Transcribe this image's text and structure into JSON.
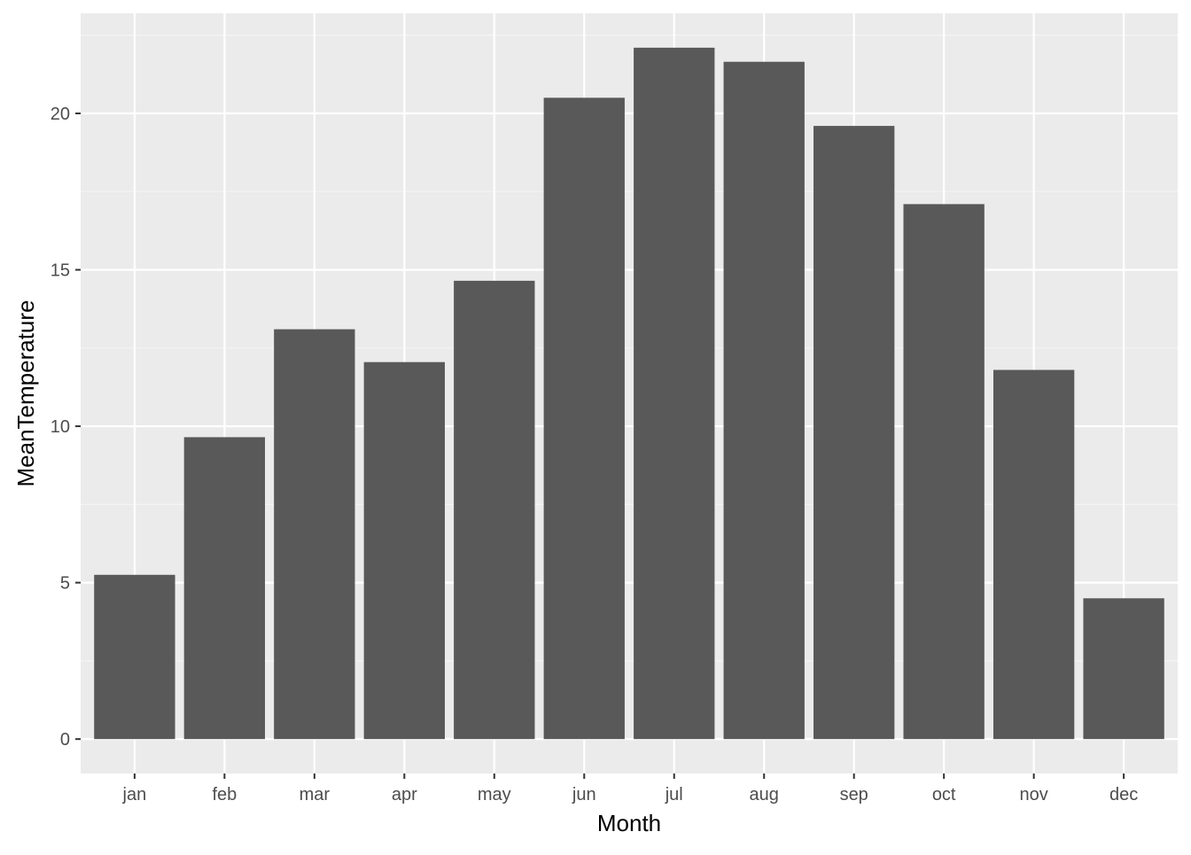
{
  "chart_data": {
    "type": "bar",
    "title": "",
    "xlabel": "Month",
    "ylabel": "MeanTemperature",
    "categories": [
      "jan",
      "feb",
      "mar",
      "apr",
      "may",
      "jun",
      "jul",
      "aug",
      "sep",
      "oct",
      "nov",
      "dec"
    ],
    "values": [
      5.25,
      9.65,
      13.1,
      12.05,
      14.65,
      20.5,
      22.1,
      21.65,
      19.6,
      17.1,
      11.8,
      4.5
    ],
    "ylim": [
      -1.1,
      23.2
    ],
    "yticks": [
      0,
      5,
      10,
      15,
      20
    ],
    "ytick_labels": [
      "0",
      "5",
      "10",
      "15",
      "20"
    ],
    "grid": true,
    "legend": "none",
    "colors": {
      "bar": "#595959",
      "panel": "#ebebeb",
      "grid_major": "#ffffff",
      "grid_minor": "#f5f5f5",
      "text": "#4d4d4d",
      "title_text": "#000000"
    }
  }
}
